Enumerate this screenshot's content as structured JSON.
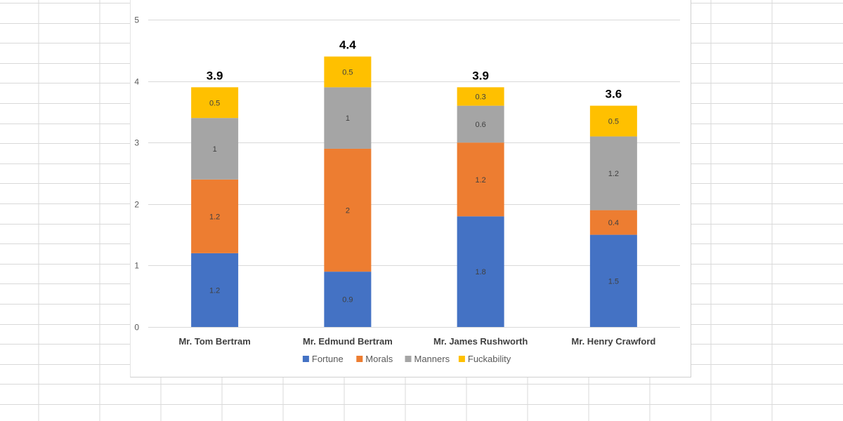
{
  "chart_data": {
    "type": "bar",
    "stacked": true,
    "title": "",
    "xlabel": "",
    "ylabel": "",
    "ylim": [
      0,
      5
    ],
    "yticks": [
      0,
      1,
      2,
      3,
      4,
      5
    ],
    "grid": true,
    "legend_position": "bottom",
    "categories": [
      "Mr. Tom Bertram",
      "Mr. Edmund Bertram",
      "Mr. James Rushworth",
      "Mr. Henry Crawford"
    ],
    "series": [
      {
        "name": "Fortune",
        "color": "#4472C4",
        "values": [
          1.2,
          0.9,
          1.8,
          1.5
        ]
      },
      {
        "name": "Morals",
        "color": "#ED7D31",
        "values": [
          1.2,
          2,
          1.2,
          0.4
        ]
      },
      {
        "name": "Manners",
        "color": "#A5A5A5",
        "values": [
          1,
          1,
          0.6,
          1.2
        ]
      },
      {
        "name": "Fuckability",
        "color": "#FFC000",
        "values": [
          0.5,
          0.5,
          0.3,
          0.5
        ]
      }
    ],
    "totals": [
      "3.9",
      "4.4",
      "3.9",
      "3.6"
    ]
  }
}
